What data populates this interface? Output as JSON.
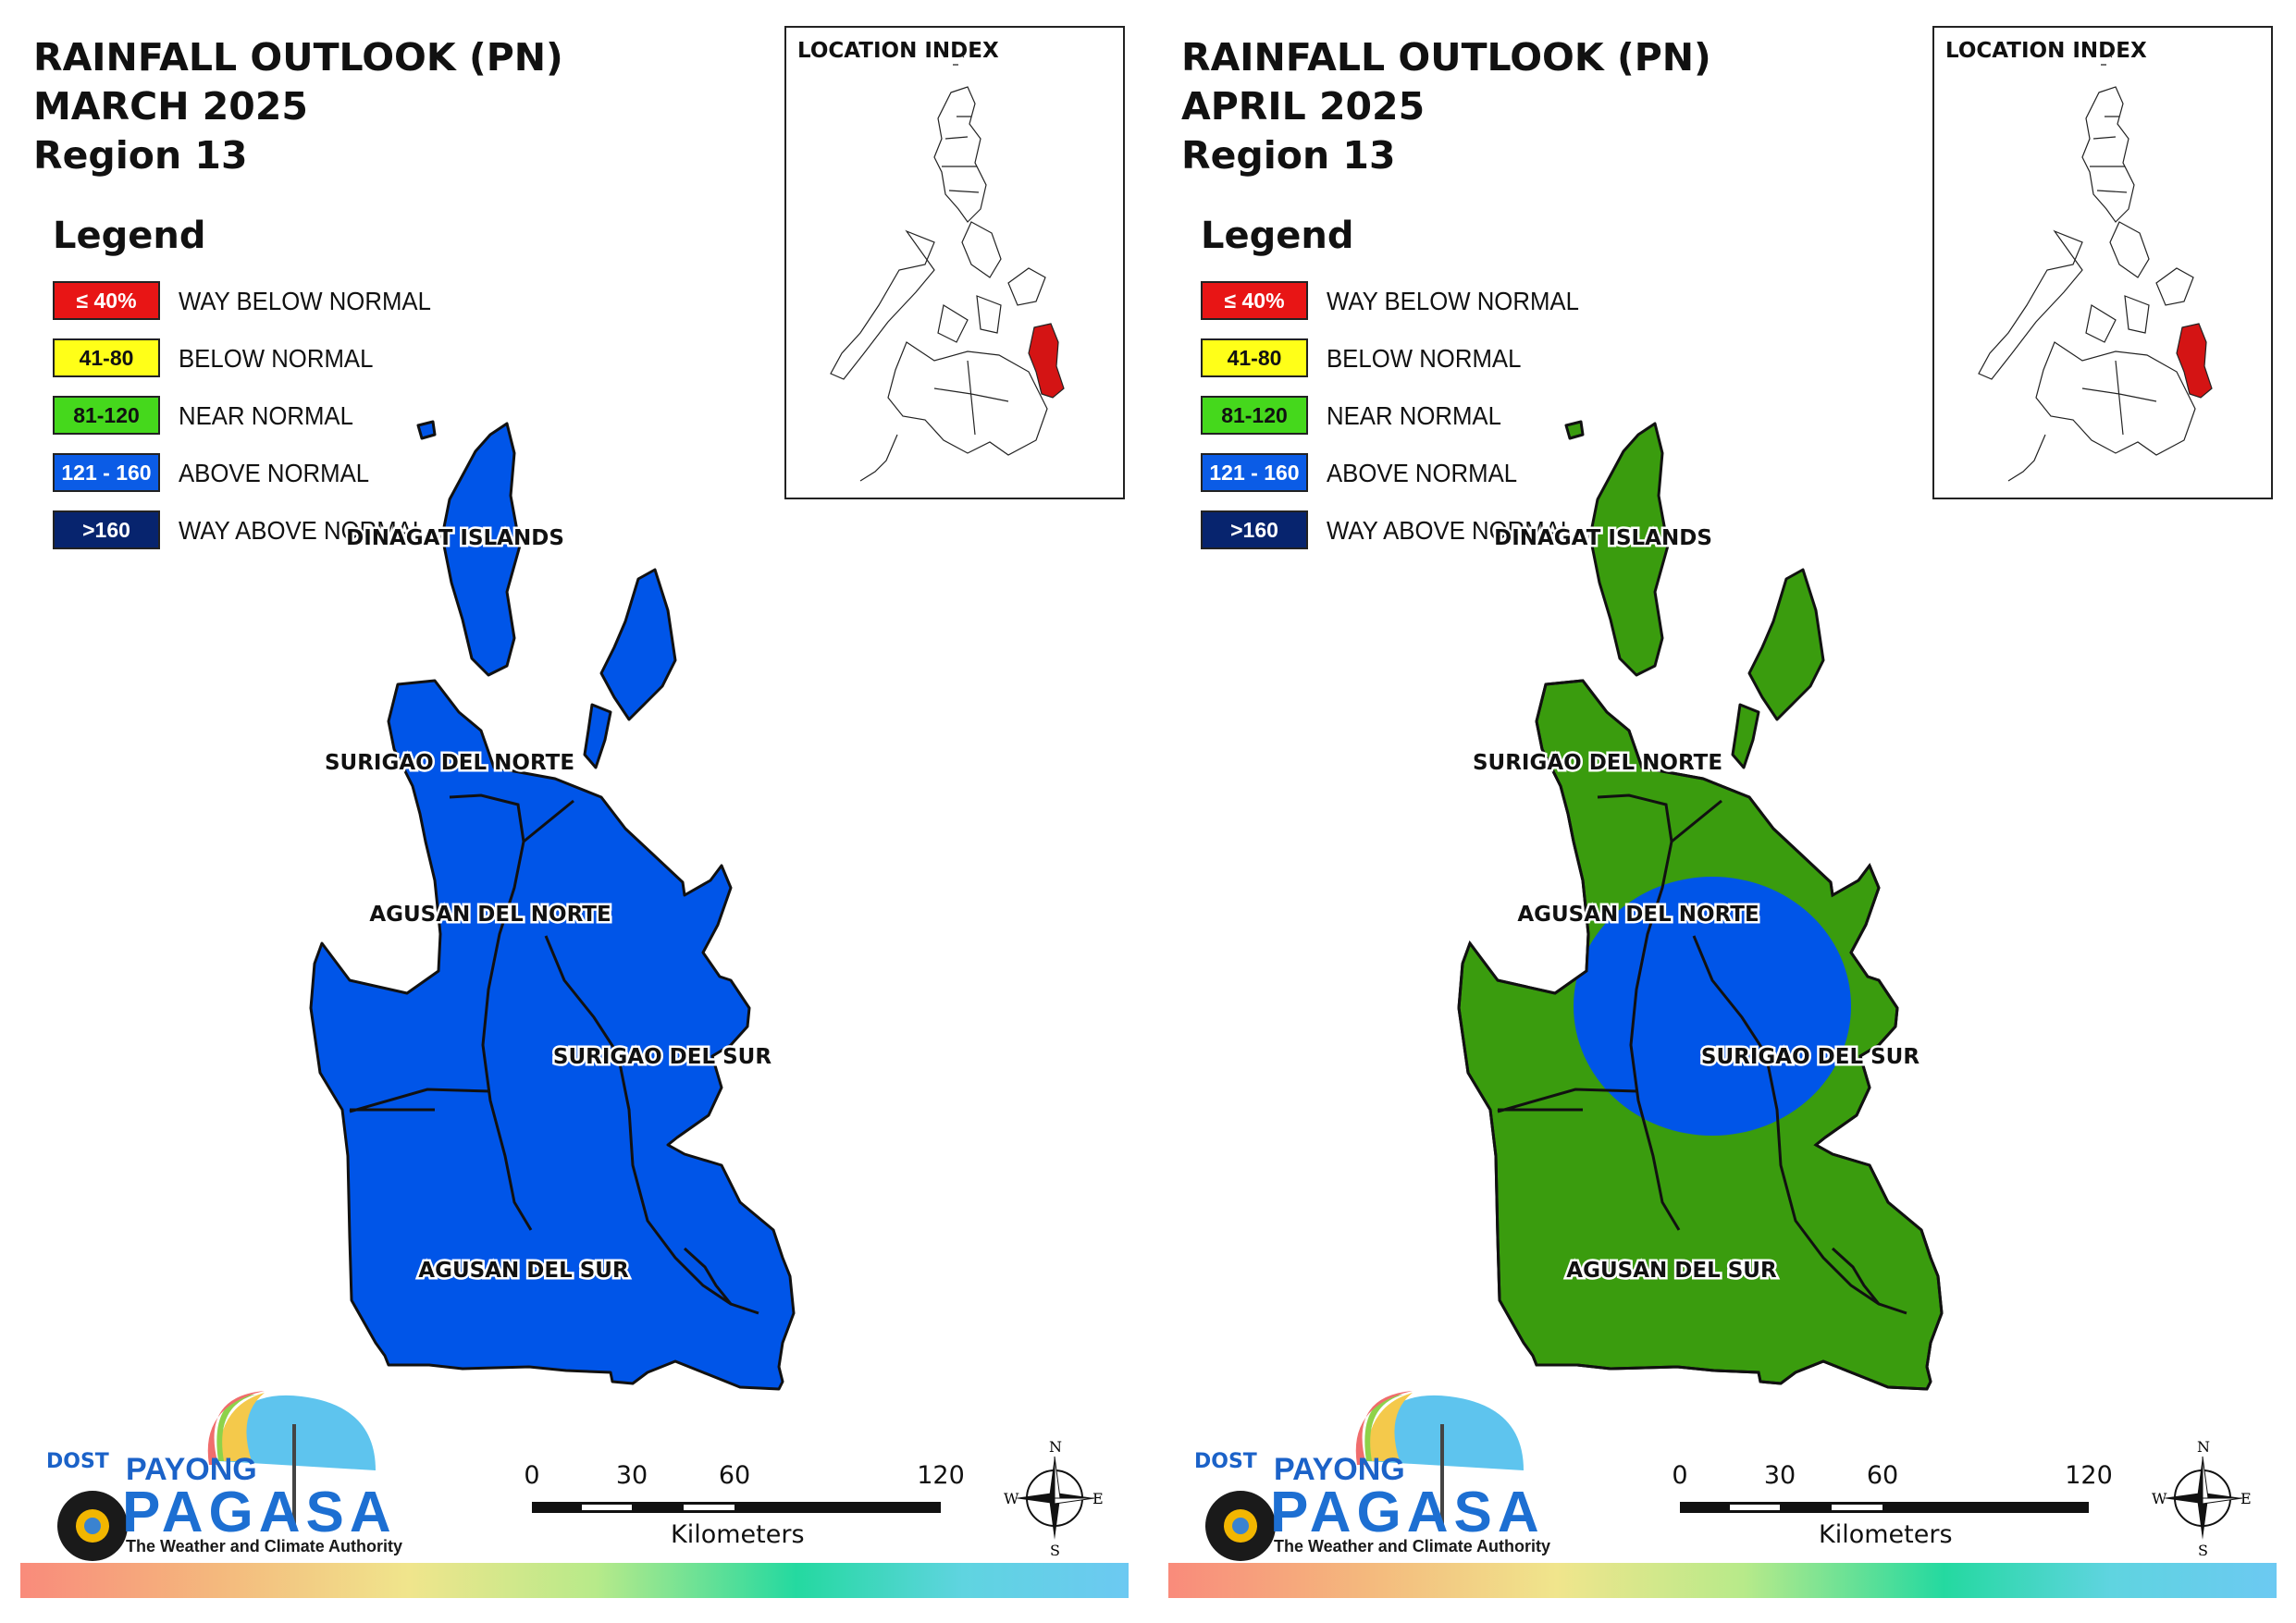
{
  "panels": [
    {
      "title_line1": "RAINFALL OUTLOOK (PN)",
      "title_line2": "MARCH 2025",
      "title_line3": "Region 13",
      "fill_color": "#0055e8",
      "has_circle": false
    },
    {
      "title_line1": "RAINFALL OUTLOOK (PN)",
      "title_line2": "APRIL 2025",
      "title_line3": "Region 13",
      "fill_color": "#3a9c0e",
      "has_circle": true,
      "circle_color": "#0055e8"
    }
  ],
  "legend": {
    "heading": "Legend",
    "items": [
      {
        "swatch": "≤ 40%",
        "label": "WAY BELOW NORMAL",
        "color": "#e81515",
        "text_color": "#ffffff"
      },
      {
        "swatch": "41-80",
        "label": "BELOW NORMAL",
        "color": "#ffff18",
        "text_color": "#111111"
      },
      {
        "swatch": "81-120",
        "label": "NEAR NORMAL",
        "color": "#45d81c",
        "text_color": "#111111"
      },
      {
        "swatch": "121 - 160",
        "label": "ABOVE NORMAL",
        "color": "#0b5ce6",
        "text_color": "#ffffff"
      },
      {
        "swatch": ">160",
        "label": "WAY ABOVE NORMAL",
        "color": "#07246e",
        "text_color": "#ffffff"
      }
    ]
  },
  "inset": {
    "title": "LOCATION INDEX",
    "highlight_color": "#d41414"
  },
  "provinces": {
    "dinagat": "DINAGAT ISLANDS",
    "surigao_norte": "SURIGAO DEL NORTE",
    "agusan_norte": "AGUSAN DEL NORTE",
    "surigao_sur": "SURIGAO DEL SUR",
    "agusan_sur": "AGUSAN DEL SUR"
  },
  "logo": {
    "dost": "DOST",
    "payong": "PAYONG",
    "pagasa": "PAGASA",
    "tagline": "The Weather and Climate Authority"
  },
  "scale": {
    "ticks": [
      "0",
      "30",
      "60",
      "120"
    ],
    "unit": "Kilometers"
  },
  "compass": {
    "n": "N",
    "s": "S",
    "e": "E",
    "w": "W"
  }
}
